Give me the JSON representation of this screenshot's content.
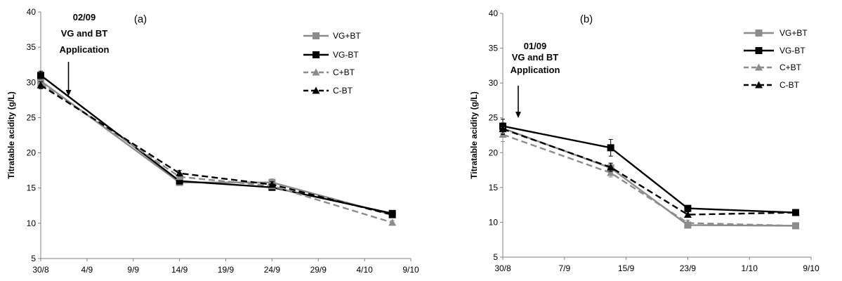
{
  "chart_data": [
    {
      "type": "line",
      "panel_label": "(a)",
      "ylabel": "Titratable acidity (g/L)",
      "ylim": [
        5,
        40
      ],
      "y_ticks": [
        "5",
        "10",
        "15",
        "20",
        "25",
        "30",
        "35",
        "40"
      ],
      "x_tick_labels": [
        "30/8",
        "4/9",
        "9/9",
        "14/9",
        "19/9",
        "24/9",
        "29/9",
        "4/10",
        "9/10"
      ],
      "x_days": [
        0,
        5,
        10,
        15,
        20,
        25,
        30,
        35,
        40
      ],
      "annotation": {
        "lines": [
          "02/09",
          "VG and BT",
          "Application"
        ],
        "day": 3
      },
      "legend": {
        "position": "top-right"
      },
      "series": [
        {
          "name": "VG+BT",
          "color": "#8c8c8c",
          "dash": false,
          "marker": "square",
          "x": [
            0,
            15,
            25,
            38
          ],
          "y": [
            30.2,
            15.8,
            15.8,
            11.2
          ],
          "err": [
            0.7,
            0.4,
            0.5,
            0.3
          ]
        },
        {
          "name": "VG-BT",
          "color": "#000000",
          "dash": false,
          "marker": "square",
          "x": [
            0,
            15,
            25,
            38
          ],
          "y": [
            31.0,
            16.0,
            15.1,
            11.4
          ],
          "err": [
            0.6,
            0.4,
            0.4,
            0.3
          ]
        },
        {
          "name": "C+BT",
          "color": "#8c8c8c",
          "dash": true,
          "marker": "triangle",
          "x": [
            0,
            15,
            25,
            38
          ],
          "y": [
            29.9,
            16.6,
            15.3,
            10.1
          ],
          "err": [
            0.5,
            0.4,
            0.4,
            0.3
          ]
        },
        {
          "name": "C-BT",
          "color": "#000000",
          "dash": true,
          "marker": "triangle",
          "x": [
            0,
            15,
            25,
            38
          ],
          "y": [
            29.6,
            17.1,
            15.5,
            11.2
          ],
          "err": [
            0.5,
            0.4,
            0.4,
            0.3
          ]
        }
      ]
    },
    {
      "type": "line",
      "panel_label": "(b)",
      "ylabel": "Titratable acidity (g/L)",
      "ylim": [
        5,
        40
      ],
      "y_ticks": [
        "5",
        "10",
        "15",
        "20",
        "25",
        "30",
        "35",
        "40"
      ],
      "x_tick_labels": [
        "30/8",
        "7/9",
        "15/9",
        "23/9",
        "1/10",
        "9/10"
      ],
      "x_days": [
        0,
        8,
        16,
        24,
        32,
        40
      ],
      "annotation": {
        "lines": [
          "01/09",
          "VG and BT",
          "Application"
        ],
        "day": 2
      },
      "legend": {
        "position": "top-right"
      },
      "series": [
        {
          "name": "VG+BT",
          "color": "#8c8c8c",
          "dash": false,
          "marker": "square",
          "x": [
            0,
            14,
            24,
            38
          ],
          "y": [
            23.5,
            17.8,
            9.6,
            9.5
          ],
          "err": [
            0.8,
            0.6,
            0.4,
            0.3
          ]
        },
        {
          "name": "VG-BT",
          "color": "#000000",
          "dash": false,
          "marker": "square",
          "x": [
            0,
            14,
            24,
            38
          ],
          "y": [
            23.8,
            20.7,
            12.0,
            11.4
          ],
          "err": [
            1.0,
            1.2,
            0.4,
            0.3
          ]
        },
        {
          "name": "C+BT",
          "color": "#8c8c8c",
          "dash": true,
          "marker": "triangle",
          "x": [
            0,
            14,
            24,
            38
          ],
          "y": [
            22.6,
            17.1,
            9.9,
            9.5
          ],
          "err": [
            1.0,
            0.6,
            0.4,
            0.3
          ]
        },
        {
          "name": "C-BT",
          "color": "#000000",
          "dash": true,
          "marker": "triangle",
          "x": [
            0,
            14,
            24,
            38
          ],
          "y": [
            23.4,
            17.9,
            11.1,
            11.4
          ],
          "err": [
            0.8,
            0.6,
            0.4,
            0.3
          ]
        }
      ]
    }
  ]
}
